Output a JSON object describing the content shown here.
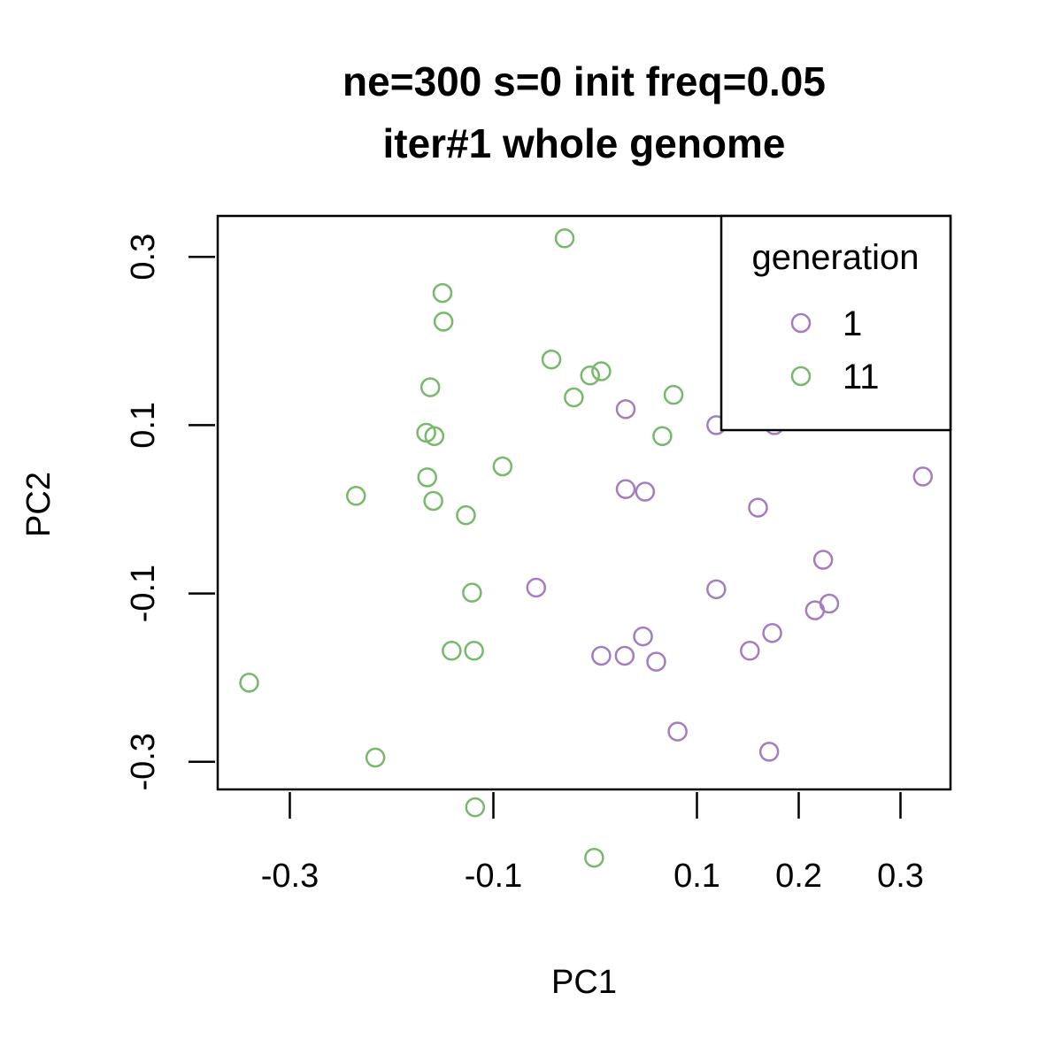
{
  "chart_data": {
    "type": "scatter",
    "title_line1": "ne=300 s=0 init freq=0.05",
    "title_line2": "iter#1 whole genome",
    "xlabel": "PC1",
    "ylabel": "PC2",
    "x_ticks": [
      -0.3,
      -0.1,
      0.1,
      0.2,
      0.3
    ],
    "x_tick_labels": [
      "-0.3",
      "-0.1",
      "0.1",
      "0.2",
      "0.3"
    ],
    "y_ticks": [
      -0.3,
      -0.1,
      0.1,
      0.3
    ],
    "y_tick_labels": [
      "-0.3",
      "-0.1",
      "0.1",
      "0.3"
    ],
    "legend": {
      "title": "generation",
      "placement": "top-right"
    },
    "series": [
      {
        "name": "1",
        "color": "#A47DC0",
        "points": [
          [
            0.03,
            0.119
          ],
          [
            0.03,
            0.024
          ],
          [
            0.049,
            0.021
          ],
          [
            -0.058,
            -0.093
          ],
          [
            0.047,
            -0.151
          ],
          [
            0.006,
            -0.174
          ],
          [
            0.029,
            -0.174
          ],
          [
            0.06,
            -0.181
          ],
          [
            0.081,
            -0.264
          ],
          [
            0.119,
            0.1
          ],
          [
            0.119,
            -0.095
          ],
          [
            0.16,
            0.002
          ],
          [
            0.176,
            0.1
          ],
          [
            0.174,
            -0.147
          ],
          [
            0.152,
            -0.168
          ],
          [
            0.171,
            -0.288
          ],
          [
            0.224,
            -0.06
          ],
          [
            0.216,
            -0.12
          ],
          [
            0.23,
            -0.112
          ],
          [
            0.322,
            0.039
          ]
        ]
      },
      {
        "name": "11",
        "color": "#77B96A",
        "points": [
          [
            -0.03,
            0.322
          ],
          [
            -0.15,
            0.257
          ],
          [
            -0.149,
            0.223
          ],
          [
            -0.043,
            0.178
          ],
          [
            -0.005,
            0.159
          ],
          [
            0.006,
            0.164
          ],
          [
            -0.021,
            0.133
          ],
          [
            0.077,
            0.136
          ],
          [
            0.066,
            0.087
          ],
          [
            -0.162,
            0.145
          ],
          [
            -0.166,
            0.091
          ],
          [
            -0.158,
            0.087
          ],
          [
            -0.091,
            0.051
          ],
          [
            -0.165,
            0.038
          ],
          [
            -0.235,
            0.016
          ],
          [
            -0.159,
            0.01
          ],
          [
            -0.127,
            -0.007
          ],
          [
            -0.121,
            -0.099
          ],
          [
            -0.141,
            -0.168
          ],
          [
            -0.119,
            -0.168
          ],
          [
            -0.34,
            -0.206
          ],
          [
            -0.216,
            -0.295
          ],
          [
            -0.118,
            -0.354
          ],
          [
            -0.001,
            -0.414
          ]
        ]
      }
    ]
  }
}
